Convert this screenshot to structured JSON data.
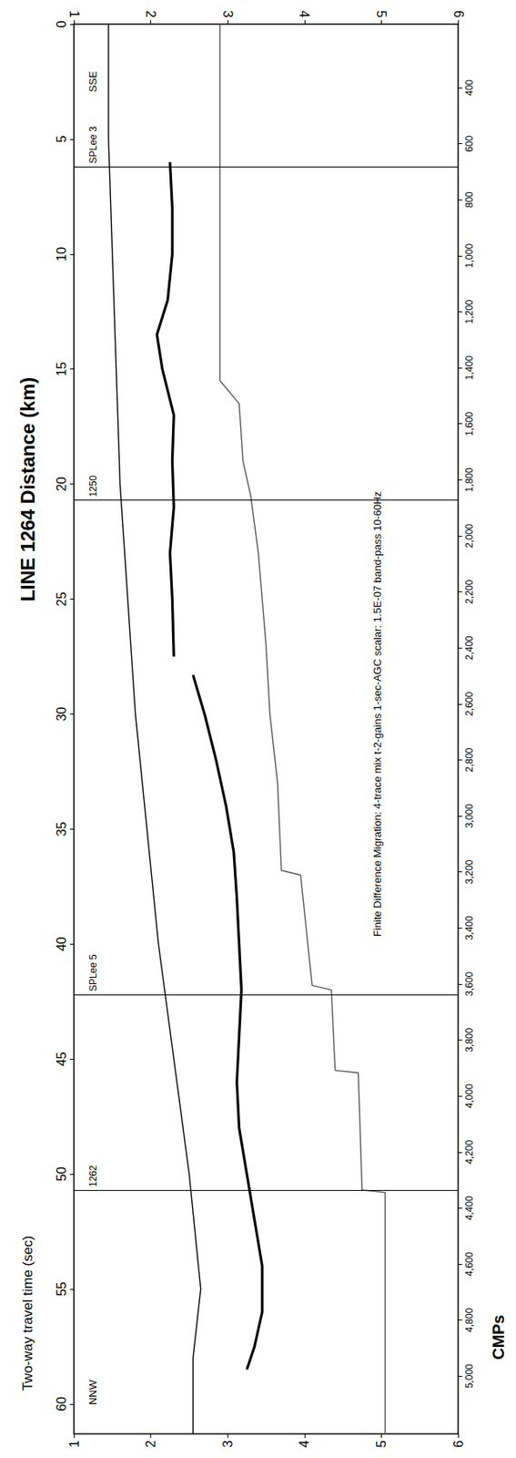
{
  "chart_data": {
    "type": "line",
    "title": "LINE 1264 Distance (km)",
    "x_label": "Two-way travel time (sec)",
    "y2_label": "CMPs",
    "xlim": [
      1,
      6
    ],
    "xticks": [
      1,
      2,
      3,
      4,
      5,
      6
    ],
    "ylim": [
      0,
      61.3
    ],
    "yticks": [
      0,
      5,
      10,
      15,
      20,
      25,
      30,
      35,
      40,
      45,
      50,
      55,
      60
    ],
    "y2lim": [
      173,
      5206
    ],
    "y2ticks": [
      400,
      600,
      800,
      1000,
      1200,
      1400,
      1600,
      1800,
      2000,
      2200,
      2400,
      2600,
      2800,
      3000,
      3200,
      3400,
      3600,
      3800,
      4000,
      4200,
      4400,
      4600,
      4800,
      5000
    ],
    "grid": false,
    "series": [
      {
        "color": "#000000",
        "line_style": "solid",
        "x": [
          1.45,
          1.45,
          1.5,
          1.55,
          1.6,
          1.7,
          1.8,
          1.95,
          2.1,
          2.3,
          2.5,
          2.65,
          2.55,
          2.55
        ],
        "y": [
          0,
          5,
          10,
          15,
          20,
          25,
          30,
          35,
          40,
          45,
          50,
          55,
          58,
          61.3
        ]
      },
      {
        "color": "#000000",
        "line_style": "thick",
        "x": [
          2.25,
          2.28,
          2.28,
          2.22,
          2.08,
          2.15,
          2.3,
          2.28,
          2.3,
          2.25,
          2.28,
          2.3,
          null,
          2.55,
          2.7,
          2.85,
          2.98,
          3.08,
          3.12,
          3.15,
          3.18,
          3.15,
          3.12,
          3.15,
          3.25,
          3.35,
          3.45,
          3.45,
          3.35,
          3.25
        ],
        "y": [
          6,
          8,
          10,
          12,
          13.5,
          15,
          17,
          19,
          21,
          23,
          25,
          27.5,
          null,
          28.3,
          30,
          32,
          34,
          36,
          38,
          40,
          42,
          44,
          46,
          48,
          50,
          52,
          54,
          56,
          57.5,
          58.5
        ]
      },
      {
        "color": "#555555",
        "line_style": "solid",
        "x": [
          2.9,
          2.9,
          3.15,
          3.2,
          3.3,
          3.4,
          3.5,
          3.55,
          3.65,
          3.7,
          3.95,
          4.1,
          4.35,
          4.4,
          4.7,
          4.75,
          5.05,
          5.05
        ],
        "y": [
          0,
          15.5,
          16.5,
          19,
          20.5,
          23,
          27,
          30,
          33,
          36.8,
          37,
          41.8,
          42,
          45.5,
          45.6,
          50.7,
          50.8,
          61.3
        ]
      }
    ],
    "shot_points": [
      {
        "label": "SPLee 3",
        "y": 6.2
      },
      {
        "label": "1250",
        "y": 20.7
      },
      {
        "label": "SPLee 5",
        "y": 42.2
      },
      {
        "label": "1262",
        "y": 50.7
      }
    ],
    "annotations": [
      {
        "text": "SSE",
        "x": 1.25,
        "y": 2.5
      },
      {
        "text": "NNW",
        "x": 1.25,
        "y": 59.5
      },
      {
        "text": "Finite Difference Migration: 4-trace mix t-2-gains 1-sec-AGC scalar: 1.5E-07 band-pass 10-60Hz",
        "x": 4.95,
        "y": 30
      }
    ]
  }
}
